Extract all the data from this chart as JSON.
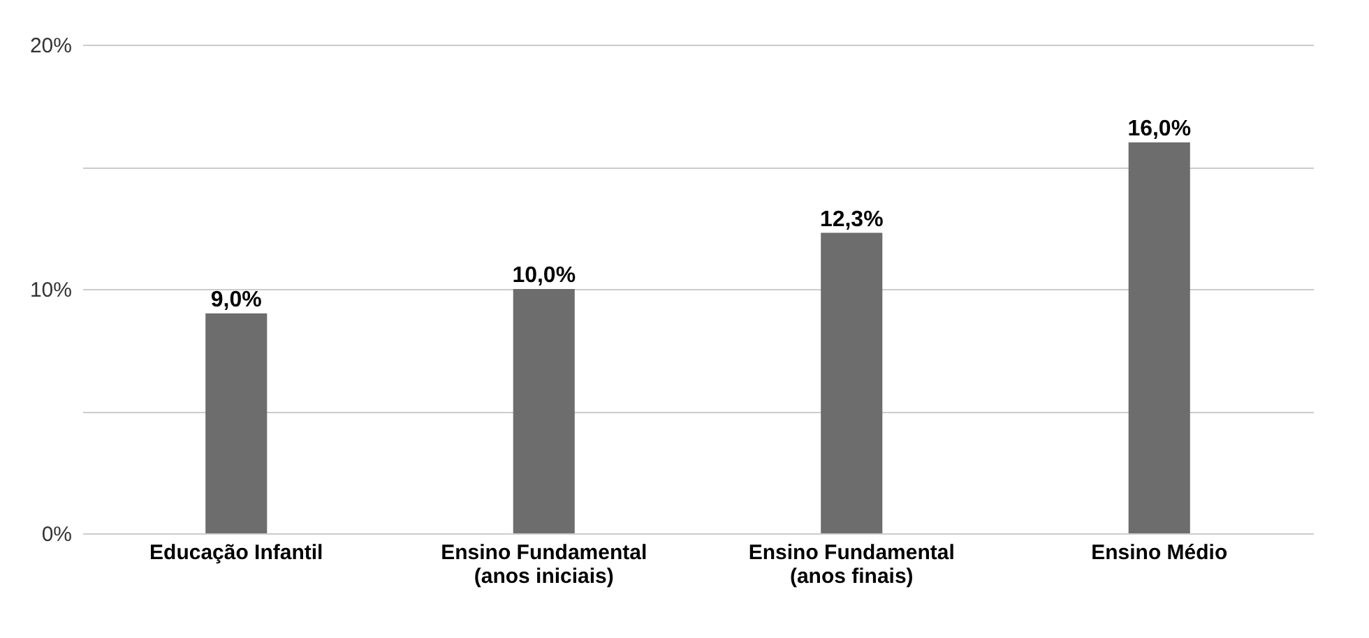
{
  "chart_data": {
    "type": "bar",
    "categories": [
      "Educação Infantil",
      "Ensino Fundamental\n(anos iniciais)",
      "Ensino Fundamental\n(anos finais)",
      "Ensino Médio"
    ],
    "values": [
      9.0,
      10.0,
      12.3,
      16.0
    ],
    "value_labels": [
      "9,0%",
      "10,0%",
      "12,3%",
      "16,0%"
    ],
    "color": "#6d6d6d",
    "ylim": [
      0,
      20
    ],
    "yticks": [
      {
        "value": 0,
        "label": "0%"
      },
      {
        "value": 5,
        "label": null
      },
      {
        "value": 10,
        "label": "10%"
      },
      {
        "value": 15,
        "label": null
      },
      {
        "value": 20,
        "label": "20%"
      }
    ],
    "grid": "y"
  }
}
